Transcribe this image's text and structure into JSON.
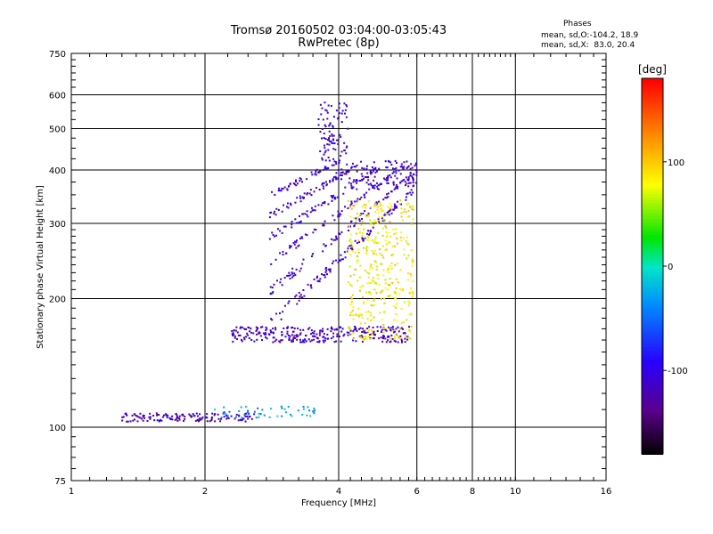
{
  "chart_data": {
    "type": "scatter",
    "title": "Tromsø 20160502 03:04:00-03:05:43",
    "subtitle": "RwPretec (8p)",
    "xlabel": "Frequency [MHz]",
    "ylabel": "Stationary phase Virtual Height [km]",
    "x_scale": "log",
    "y_scale": "log",
    "xlim": [
      1,
      16
    ],
    "ylim": [
      75,
      750
    ],
    "x_ticks": [
      "1",
      "2",
      "4",
      "6",
      "8",
      "10",
      "16"
    ],
    "y_ticks": [
      "75",
      "100",
      "200",
      "300",
      "400",
      "500",
      "600",
      "750"
    ],
    "grid": true,
    "colorbar": {
      "label": "[deg]",
      "range": [
        -180,
        180
      ],
      "ticks": [
        "100",
        "0",
        "-100"
      ]
    },
    "phase_stats": {
      "header": "Phases",
      "line_o": "mean, sd,O:-104.2, 18.9",
      "line_x": "mean, sd,X:  83.0, 20.4"
    },
    "clusters": [
      {
        "name": "E-layer",
        "x": [
          1.3,
          2.6
        ],
        "y": [
          103,
          108
        ],
        "phase": -115
      },
      {
        "name": "E-layer-tail",
        "x": [
          2.1,
          3.6
        ],
        "y": [
          105,
          112
        ],
        "phase": -30
      },
      {
        "name": "F1-base",
        "x": [
          2.3,
          5.8
        ],
        "y": [
          158,
          172
        ],
        "phase": -115
      },
      {
        "name": "F-oblique-traces",
        "x": [
          2.8,
          6.0
        ],
        "y": [
          170,
          420
        ],
        "phase": -110
      },
      {
        "name": "F-cusp-high",
        "x": [
          3.6,
          4.2
        ],
        "y": [
          420,
          580
        ],
        "phase": -110
      },
      {
        "name": "X-mode-traces",
        "x": [
          4.2,
          5.9
        ],
        "y": [
          160,
          340
        ],
        "phase": 85
      }
    ]
  }
}
